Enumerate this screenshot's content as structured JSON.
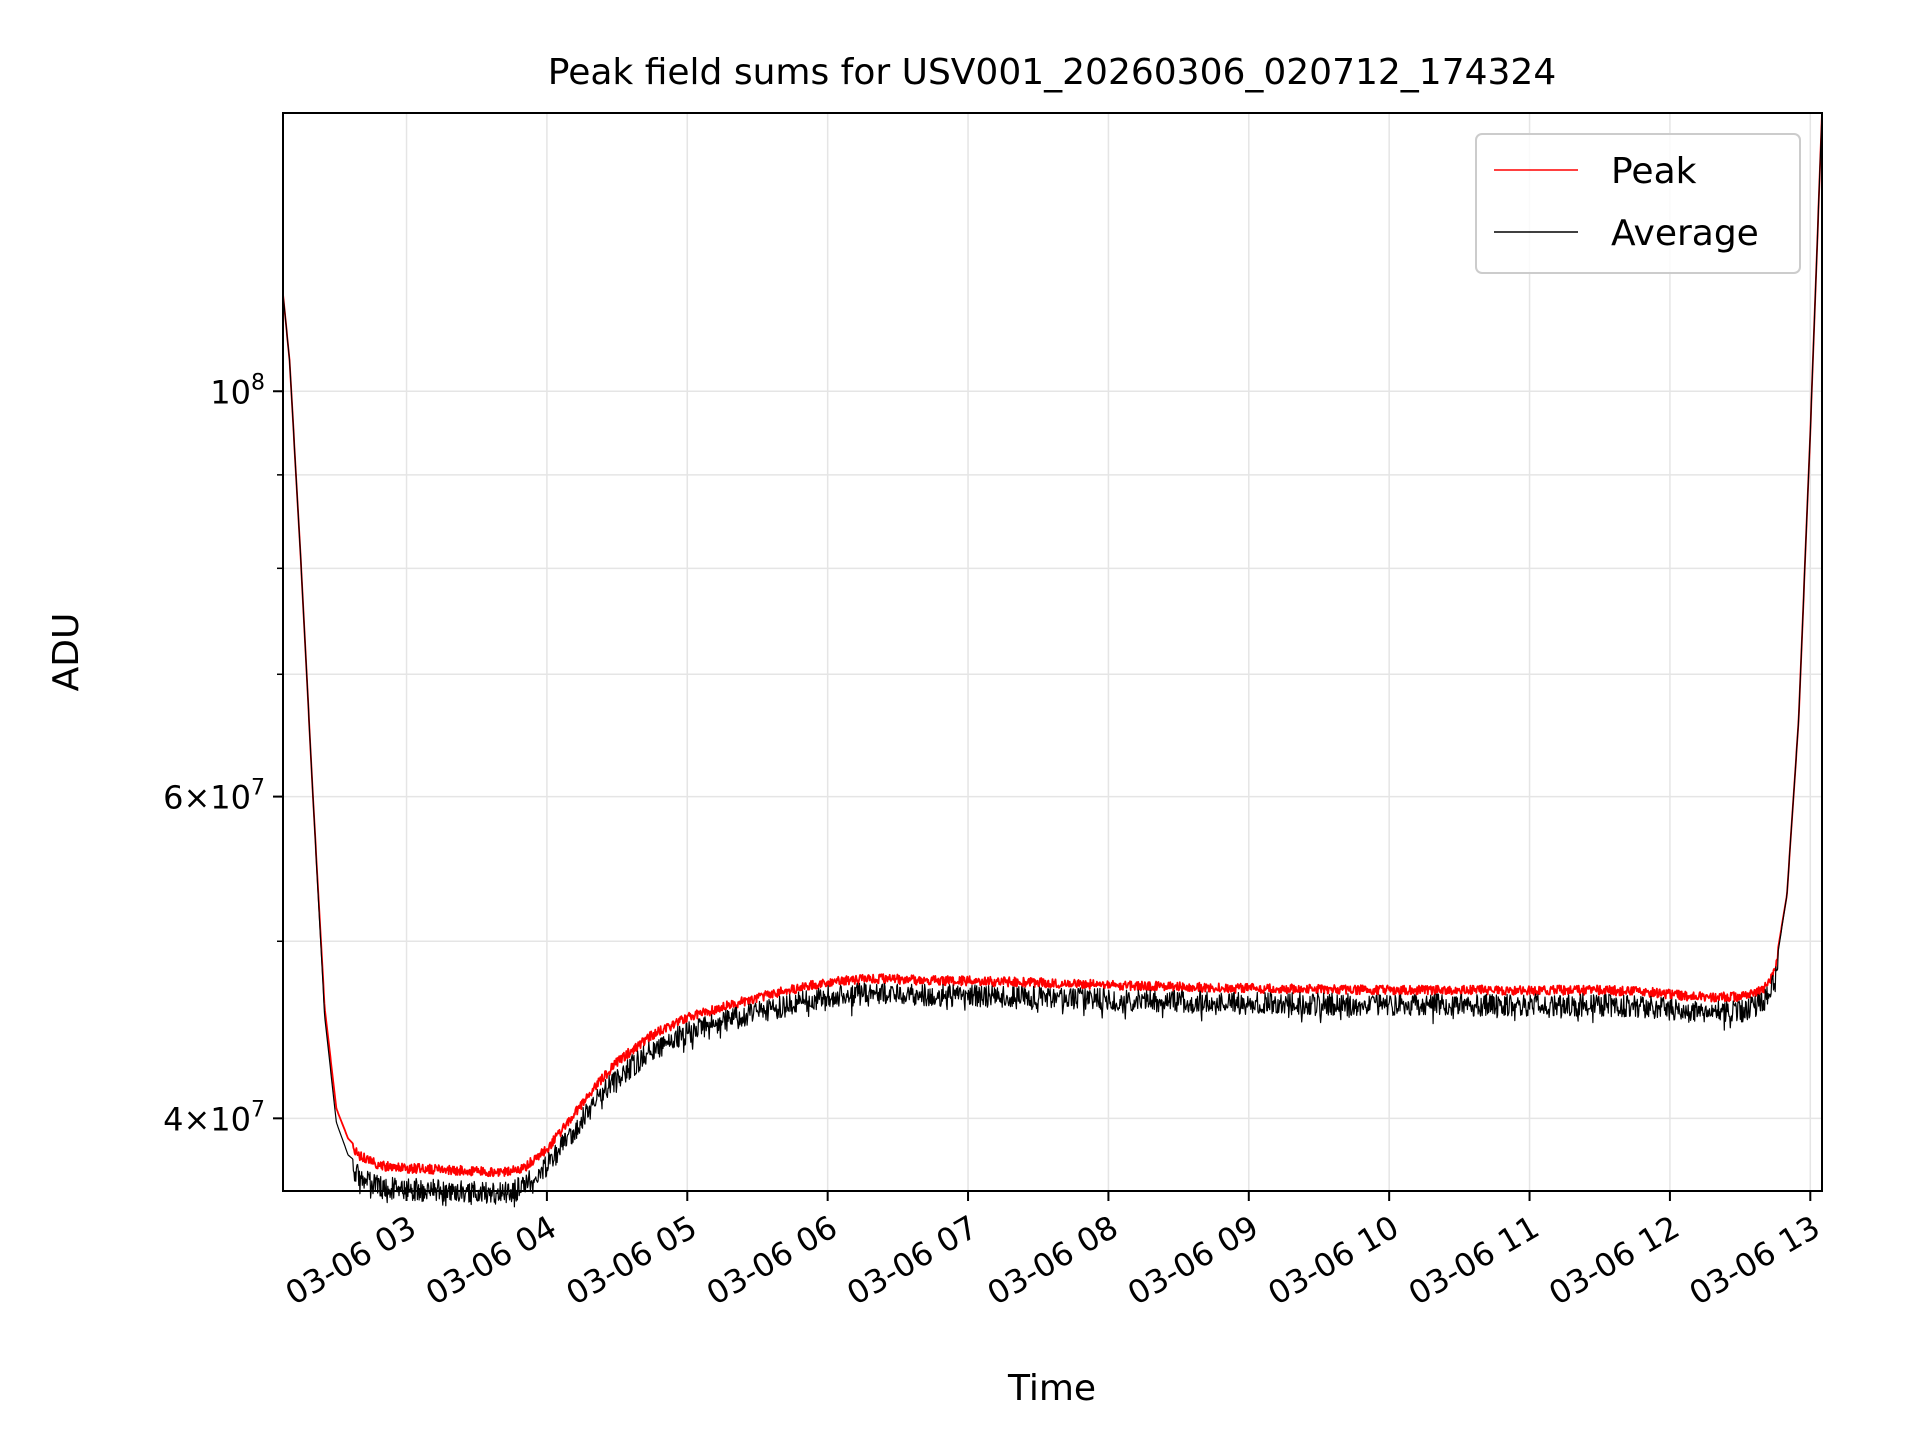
{
  "chart_data": {
    "type": "line",
    "title": "Peak field sums for USV001_20260306_020712_174324",
    "xlabel": "Time",
    "ylabel": "ADU",
    "yscale": "log",
    "grid": true,
    "legend_position": "top-right",
    "xlim": [
      "2026-03-06 02:07:12",
      "2026-03-06 13:05:00"
    ],
    "ylim": [
      36500000,
      142000000
    ],
    "x_ticks": [
      {
        "value": "2026-03-06 03:00",
        "label": "03-06 03"
      },
      {
        "value": "2026-03-06 04:00",
        "label": "03-06 04"
      },
      {
        "value": "2026-03-06 05:00",
        "label": "03-06 05"
      },
      {
        "value": "2026-03-06 06:00",
        "label": "03-06 06"
      },
      {
        "value": "2026-03-06 07:00",
        "label": "03-06 07"
      },
      {
        "value": "2026-03-06 08:00",
        "label": "03-06 08"
      },
      {
        "value": "2026-03-06 09:00",
        "label": "03-06 09"
      },
      {
        "value": "2026-03-06 10:00",
        "label": "03-06 10"
      },
      {
        "value": "2026-03-06 11:00",
        "label": "03-06 11"
      },
      {
        "value": "2026-03-06 12:00",
        "label": "03-06 12"
      },
      {
        "value": "2026-03-06 13:00",
        "label": "03-06 13"
      }
    ],
    "y_major_ticks": [
      {
        "value": 40000000,
        "mantissa": "4",
        "exponent": "7"
      },
      {
        "value": 60000000,
        "mantissa": "6",
        "exponent": "7"
      },
      {
        "value": 100000000,
        "mantissa": "",
        "exponent": "8"
      }
    ],
    "y_minor_ticks": [
      50000000,
      70000000,
      80000000,
      90000000
    ],
    "series": [
      {
        "name": "Peak",
        "color": "#ff0000",
        "noise": "low",
        "x": [
          "2026-03-06 02:07:12",
          "2026-03-06 02:10",
          "2026-03-06 02:15",
          "2026-03-06 02:20",
          "2026-03-06 02:25",
          "2026-03-06 02:30",
          "2026-03-06 02:35",
          "2026-03-06 02:40",
          "2026-03-06 02:45",
          "2026-03-06 02:50",
          "2026-03-06 03:00",
          "2026-03-06 03:20",
          "2026-03-06 03:40",
          "2026-03-06 03:50",
          "2026-03-06 04:00",
          "2026-03-06 04:10",
          "2026-03-06 04:20",
          "2026-03-06 04:30",
          "2026-03-06 04:45",
          "2026-03-06 05:00",
          "2026-03-06 05:20",
          "2026-03-06 05:40",
          "2026-03-06 06:00",
          "2026-03-06 06:20",
          "2026-03-06 06:40",
          "2026-03-06 07:00",
          "2026-03-06 07:30",
          "2026-03-06 08:00",
          "2026-03-06 09:00",
          "2026-03-06 10:00",
          "2026-03-06 11:00",
          "2026-03-06 11:30",
          "2026-03-06 11:50",
          "2026-03-06 12:10",
          "2026-03-06 12:30",
          "2026-03-06 12:40",
          "2026-03-06 12:45",
          "2026-03-06 12:50",
          "2026-03-06 12:55",
          "2026-03-06 13:00",
          "2026-03-06 13:05"
        ],
        "values": [
          113000000,
          104000000,
          80000000,
          60000000,
          46000000,
          40500000,
          39000000,
          38400000,
          38100000,
          37900000,
          37800000,
          37700000,
          37600000,
          37800000,
          38700000,
          40200000,
          41800000,
          43200000,
          44700000,
          45700000,
          46500000,
          47200000,
          47800000,
          48000000,
          47900000,
          47850000,
          47750000,
          47600000,
          47400000,
          47300000,
          47300000,
          47300000,
          47200000,
          46900000,
          46900000,
          47300000,
          48500000,
          53000000,
          66000000,
          95000000,
          142000000
        ]
      },
      {
        "name": "Average",
        "color": "#000000",
        "noise": "high",
        "x": [
          "2026-03-06 02:07:12",
          "2026-03-06 02:10",
          "2026-03-06 02:15",
          "2026-03-06 02:20",
          "2026-03-06 02:25",
          "2026-03-06 02:30",
          "2026-03-06 02:35",
          "2026-03-06 02:40",
          "2026-03-06 02:45",
          "2026-03-06 02:50",
          "2026-03-06 03:00",
          "2026-03-06 03:20",
          "2026-03-06 03:40",
          "2026-03-06 03:50",
          "2026-03-06 04:00",
          "2026-03-06 04:10",
          "2026-03-06 04:20",
          "2026-03-06 04:30",
          "2026-03-06 04:45",
          "2026-03-06 05:00",
          "2026-03-06 05:20",
          "2026-03-06 05:40",
          "2026-03-06 06:00",
          "2026-03-06 06:20",
          "2026-03-06 06:40",
          "2026-03-06 07:00",
          "2026-03-06 07:30",
          "2026-03-06 08:00",
          "2026-03-06 09:00",
          "2026-03-06 10:00",
          "2026-03-06 11:00",
          "2026-03-06 11:30",
          "2026-03-06 11:50",
          "2026-03-06 12:10",
          "2026-03-06 12:30",
          "2026-03-06 12:40",
          "2026-03-06 12:45",
          "2026-03-06 12:50",
          "2026-03-06 12:55",
          "2026-03-06 13:00",
          "2026-03-06 13:05"
        ],
        "values": [
          113000000,
          104000000,
          80000000,
          60000000,
          45500000,
          39800000,
          38200000,
          37700000,
          37400000,
          37200000,
          37100000,
          37000000,
          36900000,
          37200000,
          38200000,
          39700000,
          41300000,
          42700000,
          44200000,
          45200000,
          46000000,
          46700000,
          47300000,
          47500000,
          47400000,
          47350000,
          47250000,
          47100000,
          46900000,
          46800000,
          46800000,
          46800000,
          46700000,
          46400000,
          46400000,
          46900000,
          48200000,
          53000000,
          66000000,
          95000000,
          142000000
        ]
      }
    ]
  }
}
